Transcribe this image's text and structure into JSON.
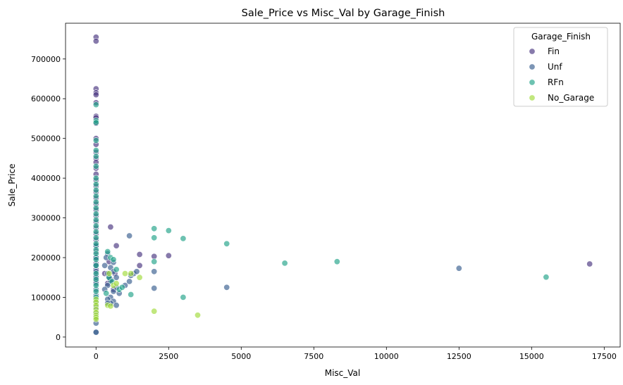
{
  "chart_data": {
    "type": "scatter",
    "title": "Sale_Price vs Misc_Val by Garage_Finish",
    "xlabel": "Misc_Val",
    "ylabel": "Sale_Price",
    "xlim": [
      -1050,
      18050
    ],
    "ylim": [
      -25000,
      790000
    ],
    "xticks": [
      0,
      2500,
      5000,
      7500,
      10000,
      12500,
      15000,
      17500
    ],
    "xtick_labels": [
      "0",
      "2500",
      "5000",
      "7500",
      "10000",
      "12500",
      "15000",
      "17500"
    ],
    "yticks": [
      0,
      100000,
      200000,
      300000,
      400000,
      500000,
      600000,
      700000
    ],
    "ytick_labels": [
      "0",
      "100000",
      "200000",
      "300000",
      "400000",
      "500000",
      "600000",
      "700000"
    ],
    "grid": false,
    "legend": {
      "title": "Garage_Finish",
      "placement": "top-right"
    },
    "series": [
      {
        "name": "Fin",
        "color": "#46337e",
        "points": [
          [
            0,
            755000
          ],
          [
            0,
            745000
          ],
          [
            0,
            625000
          ],
          [
            0,
            615000
          ],
          [
            0,
            610000
          ],
          [
            0,
            590000
          ],
          [
            0,
            556000
          ],
          [
            0,
            552000
          ],
          [
            0,
            538000
          ],
          [
            0,
            500000
          ],
          [
            0,
            485000
          ],
          [
            0,
            465000
          ],
          [
            0,
            450000
          ],
          [
            0,
            440000
          ],
          [
            0,
            425000
          ],
          [
            0,
            410000
          ],
          [
            0,
            395000
          ],
          [
            0,
            380000
          ],
          [
            0,
            365000
          ],
          [
            0,
            350000
          ],
          [
            0,
            335000
          ],
          [
            0,
            320000
          ],
          [
            0,
            305000
          ],
          [
            0,
            290000
          ],
          [
            0,
            275000
          ],
          [
            0,
            260000
          ],
          [
            0,
            245000
          ],
          [
            0,
            230000
          ],
          [
            0,
            215000
          ],
          [
            0,
            200000
          ],
          [
            0,
            185000
          ],
          [
            0,
            170000
          ],
          [
            0,
            155000
          ],
          [
            0,
            140000
          ],
          [
            500,
            277000
          ],
          [
            700,
            230000
          ],
          [
            1500,
            208000
          ],
          [
            2000,
            203000
          ],
          [
            2500,
            205000
          ],
          [
            17000,
            184000
          ],
          [
            450,
            190000
          ],
          [
            500,
            145000
          ],
          [
            400,
            135000
          ],
          [
            1500,
            180000
          ],
          [
            650,
            160000
          ],
          [
            600,
            120000
          ],
          [
            300,
            160000
          ]
        ]
      },
      {
        "name": "Unf",
        "color": "#365c8d",
        "points": [
          [
            0,
            230000
          ],
          [
            0,
            200000
          ],
          [
            0,
            180000
          ],
          [
            0,
            165000
          ],
          [
            0,
            150000
          ],
          [
            0,
            135000
          ],
          [
            0,
            120000
          ],
          [
            0,
            105000
          ],
          [
            0,
            90000
          ],
          [
            0,
            75000
          ],
          [
            0,
            60000
          ],
          [
            0,
            50000
          ],
          [
            0,
            35000
          ],
          [
            0,
            13000
          ],
          [
            0,
            12000
          ],
          [
            400,
            210000
          ],
          [
            350,
            200000
          ],
          [
            500,
            175000
          ],
          [
            600,
            165000
          ],
          [
            400,
            160000
          ],
          [
            700,
            150000
          ],
          [
            500,
            140000
          ],
          [
            400,
            130000
          ],
          [
            300,
            120000
          ],
          [
            600,
            115000
          ],
          [
            800,
            110000
          ],
          [
            500,
            100000
          ],
          [
            400,
            95000
          ],
          [
            600,
            90000
          ],
          [
            500,
            85000
          ],
          [
            700,
            80000
          ],
          [
            400,
            85000
          ],
          [
            1200,
            155000
          ],
          [
            1300,
            160000
          ],
          [
            1400,
            165000
          ],
          [
            1150,
            140000
          ],
          [
            1000,
            130000
          ],
          [
            700,
            125000
          ],
          [
            1150,
            255000
          ],
          [
            2000,
            165000
          ],
          [
            2000,
            123000
          ],
          [
            4500,
            125000
          ],
          [
            12500,
            173000
          ],
          [
            600,
            188000
          ],
          [
            300,
            180000
          ],
          [
            450,
            150000
          ]
        ]
      },
      {
        "name": "RFn",
        "color": "#1fa187",
        "points": [
          [
            0,
            585000
          ],
          [
            0,
            545000
          ],
          [
            0,
            540000
          ],
          [
            0,
            495000
          ],
          [
            0,
            470000
          ],
          [
            0,
            455000
          ],
          [
            0,
            430000
          ],
          [
            0,
            400000
          ],
          [
            0,
            385000
          ],
          [
            0,
            370000
          ],
          [
            0,
            355000
          ],
          [
            0,
            340000
          ],
          [
            0,
            325000
          ],
          [
            0,
            310000
          ],
          [
            0,
            295000
          ],
          [
            0,
            280000
          ],
          [
            0,
            265000
          ],
          [
            0,
            250000
          ],
          [
            0,
            235000
          ],
          [
            0,
            220000
          ],
          [
            0,
            210000
          ],
          [
            0,
            195000
          ],
          [
            0,
            180000
          ],
          [
            0,
            160000
          ],
          [
            0,
            145000
          ],
          [
            0,
            130000
          ],
          [
            0,
            115000
          ],
          [
            0,
            100000
          ],
          [
            2000,
            273000
          ],
          [
            2500,
            268000
          ],
          [
            2000,
            250000
          ],
          [
            3000,
            248000
          ],
          [
            4500,
            235000
          ],
          [
            2000,
            190000
          ],
          [
            6500,
            186000
          ],
          [
            8300,
            190000
          ],
          [
            15500,
            151000
          ],
          [
            3000,
            100000
          ],
          [
            1200,
            107000
          ],
          [
            400,
            215000
          ],
          [
            500,
            200000
          ],
          [
            600,
            195000
          ],
          [
            700,
            170000
          ],
          [
            450,
            150000
          ],
          [
            550,
            140000
          ],
          [
            800,
            120000
          ],
          [
            900,
            125000
          ],
          [
            350,
            110000
          ]
        ]
      },
      {
        "name": "No_Garage",
        "color": "#a0da39",
        "points": [
          [
            0,
            95000
          ],
          [
            0,
            88000
          ],
          [
            0,
            80000
          ],
          [
            0,
            70000
          ],
          [
            0,
            62000
          ],
          [
            0,
            55000
          ],
          [
            0,
            50000
          ],
          [
            0,
            45000
          ],
          [
            1000,
            160000
          ],
          [
            1200,
            160000
          ],
          [
            1500,
            150000
          ],
          [
            2000,
            65000
          ],
          [
            3500,
            55000
          ],
          [
            400,
            80000
          ],
          [
            500,
            78000
          ],
          [
            600,
            130000
          ],
          [
            450,
            160000
          ],
          [
            700,
            135000
          ]
        ]
      }
    ]
  }
}
